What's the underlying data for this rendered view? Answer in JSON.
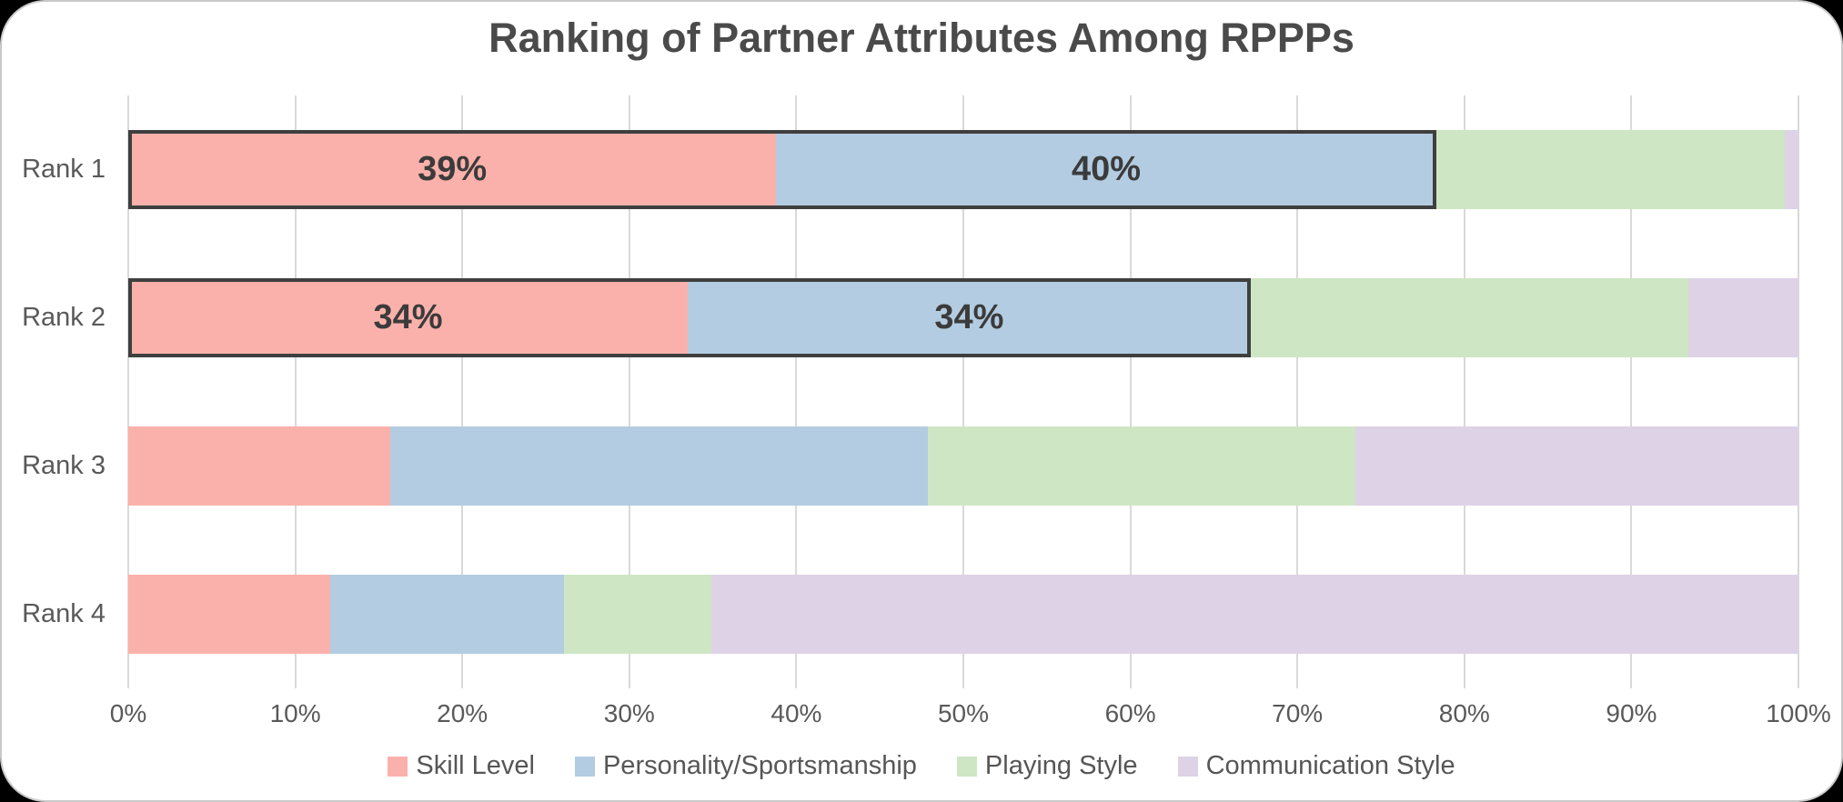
{
  "title": "Ranking of Partner Attributes Among RPPPs",
  "chart_data": {
    "type": "bar",
    "orientation": "horizontal",
    "stacked": true,
    "stacked_to": "100%",
    "title": "Ranking of Partner Attributes Among RPPPs",
    "categories": [
      "Rank 1",
      "Rank 2",
      "Rank 3",
      "Rank 4"
    ],
    "series": [
      {
        "name": "Skill Level",
        "color": "#FBB1AB",
        "values": [
          38.8,
          33.5,
          15.7,
          12.1
        ],
        "labels": [
          "39%",
          "34%",
          "",
          ""
        ]
      },
      {
        "name": "Personality/Sportsmanship",
        "color": "#B3CCE1",
        "values": [
          39.5,
          33.7,
          32.2,
          14.0
        ],
        "labels": [
          "40%",
          "34%",
          "",
          ""
        ]
      },
      {
        "name": "Playing Style",
        "color": "#CEE6C4",
        "values": [
          20.9,
          26.2,
          25.6,
          8.8
        ],
        "labels": [
          "",
          "",
          "",
          ""
        ]
      },
      {
        "name": "Communication Style",
        "color": "#DDD2E6",
        "values": [
          0.8,
          6.6,
          26.5,
          65.1
        ],
        "labels": [
          "",
          "",
          "",
          ""
        ]
      }
    ],
    "x_tick_labels": [
      "0%",
      "10%",
      "20%",
      "30%",
      "40%",
      "50%",
      "60%",
      "70%",
      "80%",
      "90%",
      "100%"
    ],
    "xlim": [
      0,
      100
    ],
    "grid": true,
    "legend_position": "bottom",
    "highlight": {
      "rows": [
        0,
        1
      ],
      "through_series_count": 2,
      "border_color": "#3F3F3F"
    }
  },
  "colors": {
    "background": "#FFFFFF",
    "outside": "#000000",
    "gridline": "#D9D9D9",
    "title_text": "#4A4A4A",
    "axis_text": "#595959",
    "data_label_text": "#3B3B3B",
    "highlight_border": "#3F3F3F"
  }
}
